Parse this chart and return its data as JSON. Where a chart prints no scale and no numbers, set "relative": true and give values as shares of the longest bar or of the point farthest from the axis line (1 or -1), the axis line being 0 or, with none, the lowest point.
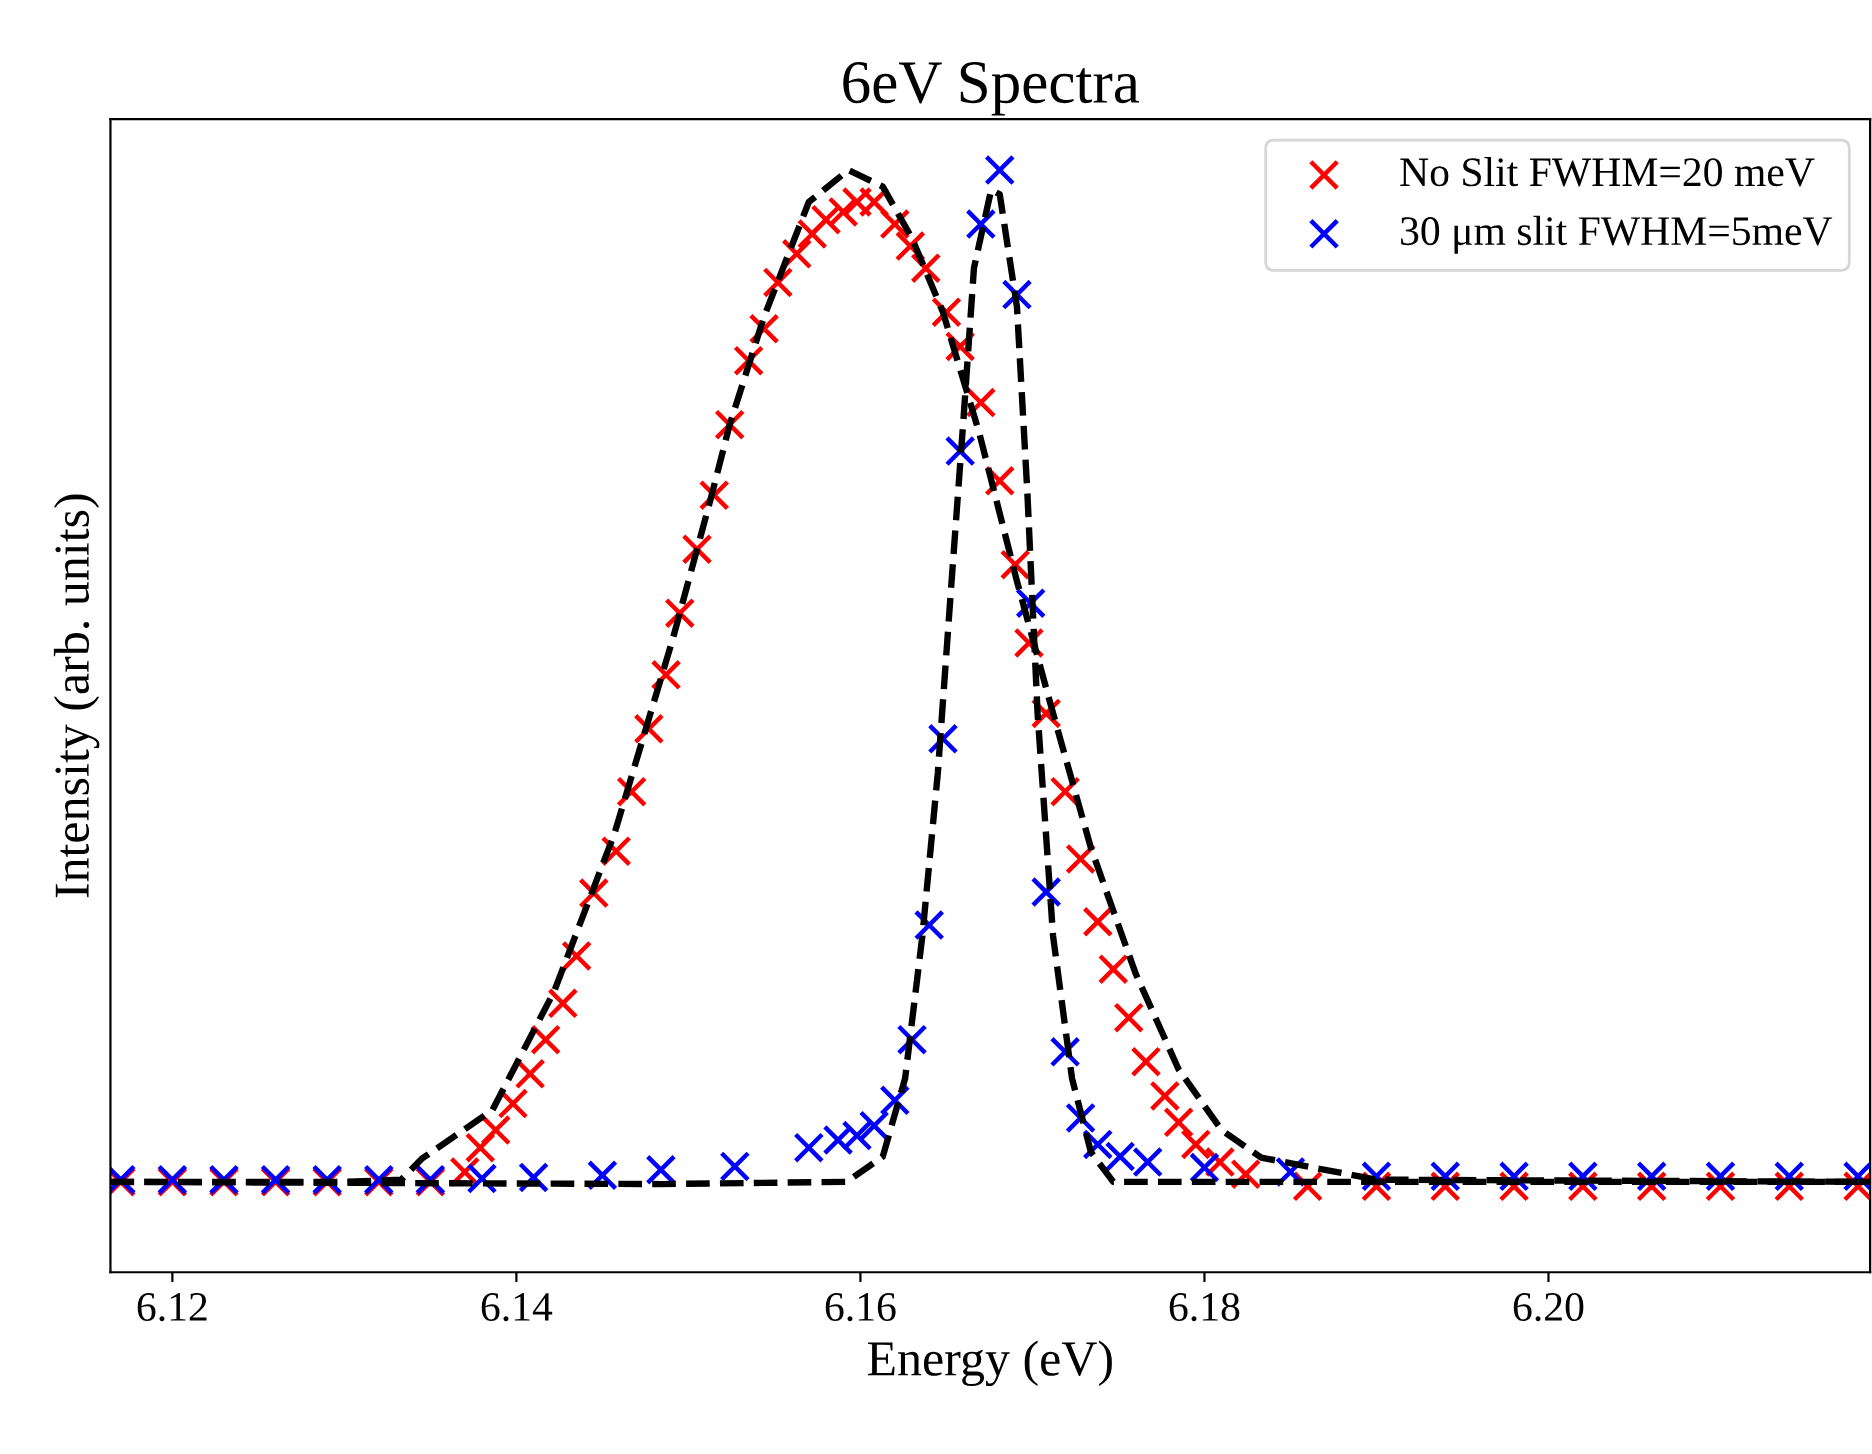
{
  "chart_data": {
    "type": "scatter",
    "title": "6eV Spectra",
    "xlabel": "Energy (eV)",
    "ylabel": "Intensity (arb. units)",
    "relative": true,
    "xlim": [
      6.1164,
      6.2187
    ],
    "xticks": [
      6.12,
      6.14,
      6.16,
      6.18,
      {
        "value": 6.2,
        "label": "6.20"
      }
    ],
    "tick_labels": "x",
    "grid": false,
    "legend": "top right",
    "marker": "cross",
    "series": [
      {
        "name": "No Slit FWHM=20 meV",
        "color": "#ff0000",
        "x": [
          6.117,
          6.12,
          6.123,
          6.126,
          6.129,
          6.132,
          6.135,
          6.137,
          6.1379,
          6.1388,
          6.1398,
          6.1408,
          6.1417,
          6.1427,
          6.1435,
          6.1445,
          6.1458,
          6.1467,
          6.1477,
          6.1487,
          6.1495,
          6.1505,
          6.1515,
          6.1524,
          6.1535,
          6.1544,
          6.1552,
          6.1563,
          6.1572,
          6.158,
          6.159,
          6.1598,
          6.1608,
          6.162,
          6.1629,
          6.1638,
          6.165,
          6.1658,
          6.167,
          6.1681,
          6.169,
          6.1698,
          6.1708,
          6.1719,
          6.1728,
          6.1738,
          6.1747,
          6.1756,
          6.1766,
          6.1777,
          6.1785,
          6.1795,
          6.1809,
          6.1824,
          6.186,
          6.19,
          6.194,
          6.198,
          6.202,
          6.206,
          6.21,
          6.214,
          6.218
        ],
        "values": [
          0.082,
          0.082,
          0.082,
          0.082,
          0.082,
          0.082,
          0.082,
          0.091,
          0.113,
          0.129,
          0.153,
          0.18,
          0.211,
          0.244,
          0.287,
          0.344,
          0.382,
          0.436,
          0.493,
          0.542,
          0.598,
          0.656,
          0.705,
          0.769,
          0.827,
          0.856,
          0.898,
          0.924,
          0.942,
          0.955,
          0.962,
          0.971,
          0.971,
          0.951,
          0.931,
          0.911,
          0.871,
          0.84,
          0.789,
          0.718,
          0.642,
          0.571,
          0.507,
          0.436,
          0.375,
          0.318,
          0.275,
          0.231,
          0.191,
          0.16,
          0.136,
          0.116,
          0.1,
          0.089,
          0.078,
          0.078,
          0.078,
          0.078,
          0.078,
          0.078,
          0.078,
          0.078,
          0.078
        ]
      },
      {
        "name": "30 μm slit FWHM=5meV",
        "color": "#0000ff",
        "x": [
          6.117,
          6.12,
          6.123,
          6.126,
          6.129,
          6.132,
          6.135,
          6.138,
          6.141,
          6.145,
          6.1484,
          6.1527,
          6.157,
          6.1587,
          6.1598,
          6.1608,
          6.162,
          6.163,
          6.164,
          6.1648,
          6.1658,
          6.167,
          6.1681,
          6.1691,
          6.1699,
          6.1708,
          6.1719,
          6.1728,
          6.1738,
          6.1751,
          6.1767,
          6.18,
          6.185,
          6.19,
          6.194,
          6.198,
          6.202,
          6.206,
          6.21,
          6.214,
          6.218
        ],
        "values": [
          0.084,
          0.084,
          0.084,
          0.084,
          0.084,
          0.084,
          0.084,
          0.085,
          0.086,
          0.088,
          0.093,
          0.096,
          0.113,
          0.12,
          0.124,
          0.133,
          0.156,
          0.211,
          0.315,
          0.484,
          0.745,
          0.951,
          1.0,
          0.887,
          0.607,
          0.345,
          0.2,
          0.14,
          0.116,
          0.105,
          0.1,
          0.095,
          0.091,
          0.087,
          0.087,
          0.087,
          0.087,
          0.087,
          0.087,
          0.087,
          0.087
        ]
      },
      {
        "type": "line",
        "color": "#000000",
        "line_style": "dashed",
        "marker": "none",
        "x": [
          6.1164,
          6.13,
          6.1333,
          6.1345,
          6.1386,
          6.1422,
          6.1457,
          6.1491,
          6.1513,
          6.1524,
          6.1544,
          6.157,
          6.1593,
          6.1613,
          6.163,
          6.1648,
          6.1669,
          6.1691,
          6.1712,
          6.1734,
          6.176,
          6.1785,
          6.181,
          6.1833,
          6.19,
          6.2187
        ],
        "values": [
          0.082,
          0.082,
          0.084,
          0.103,
          0.147,
          0.255,
          0.398,
          0.575,
          0.702,
          0.769,
          0.867,
          0.971,
          1.0,
          0.985,
          0.938,
          0.871,
          0.762,
          0.627,
          0.507,
          0.385,
          0.271,
          0.184,
          0.129,
          0.104,
          0.084,
          0.082
        ]
      },
      {
        "type": "line",
        "color": "#000000",
        "line_style": "dashed",
        "marker": "none",
        "x": [
          6.1164,
          6.1484,
          6.1592,
          6.1613,
          6.1626,
          6.1636,
          6.1645,
          6.1653,
          6.166,
          6.1666,
          6.1676,
          6.1681,
          6.1691,
          6.1697,
          6.1703,
          6.1712,
          6.1723,
          6.1734,
          6.1747,
          6.2187
        ],
        "values": [
          0.082,
          0.08,
          0.082,
          0.105,
          0.176,
          0.305,
          0.453,
          0.627,
          0.776,
          0.911,
          0.982,
          0.978,
          0.876,
          0.709,
          0.507,
          0.305,
          0.176,
          0.109,
          0.082,
          0.082
        ]
      }
    ]
  }
}
